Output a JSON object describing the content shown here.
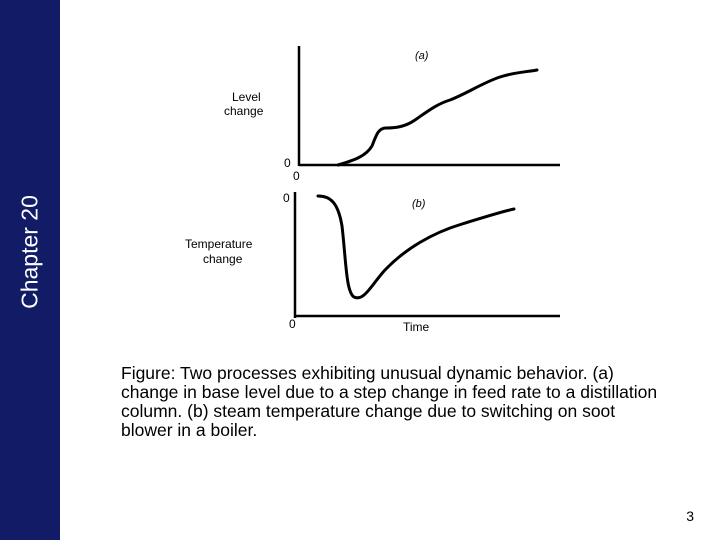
{
  "slide": {
    "chapter_label": "Chapter 20",
    "page_number": "3",
    "accent_color": "#111b66"
  },
  "figure": {
    "panel_a": {
      "tag": "(a)",
      "ylabel_line1": "Level",
      "ylabel_line2": "change",
      "zero_y": "0",
      "zero_x": "0"
    },
    "panel_b": {
      "tag": "(b)",
      "ylabel_line1": "Temperature",
      "ylabel_line2": "change",
      "zero_y": "0",
      "zero_x": "0",
      "xlabel": "Time"
    }
  },
  "caption": {
    "text": "Figure:  Two processes exhibiting unusual dynamic behavior. (a) change in base level due to a step change in feed rate to a distillation column.  (b) steam temperature change due to switching on soot blower in a boiler."
  }
}
